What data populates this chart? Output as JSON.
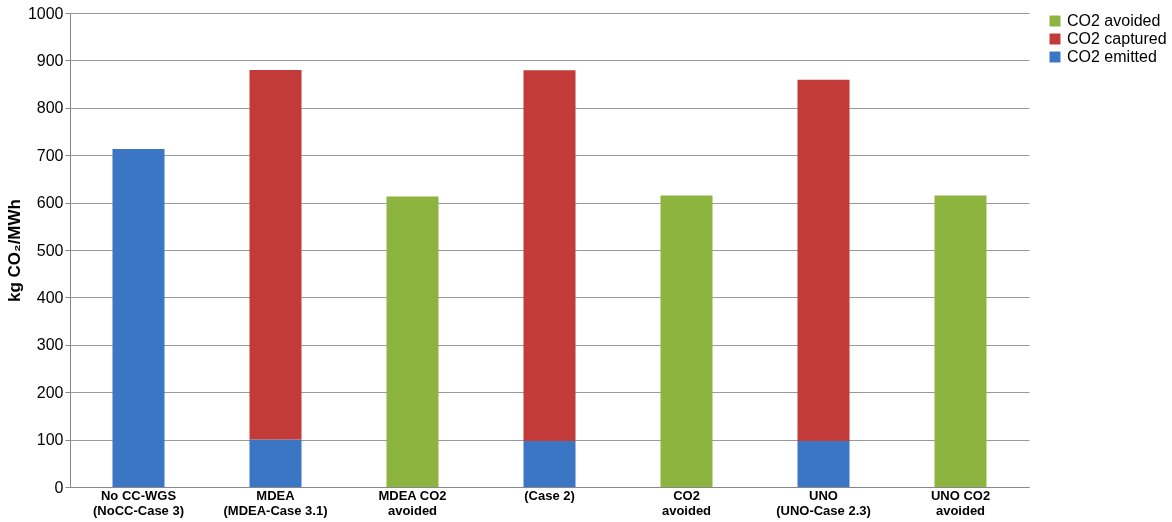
{
  "chart_data": {
    "type": "bar",
    "stacked": true,
    "ylabel": "kg CO₂/MWh",
    "categories": [
      "No CC-WGS\n(NoCC-Case 3)",
      "MDEA\n(MDEA-Case 3.1)",
      "MDEA  CO2\navoided",
      "(Case 2)",
      "CO2\navoided",
      "UNO\n(UNO-Case 2.3)",
      "UNO CO2\navoided"
    ],
    "series": [
      {
        "name": "CO2 emitted",
        "color": "#3a76c4",
        "values": [
          713,
          100,
          null,
          97,
          null,
          97,
          null
        ]
      },
      {
        "name": "CO2 captured",
        "color": "#c23b38",
        "values": [
          null,
          780,
          null,
          782,
          null,
          762,
          null
        ]
      },
      {
        "name": "CO2 avoided",
        "color": "#8db43e",
        "values": [
          null,
          null,
          613,
          null,
          615,
          null,
          615
        ]
      }
    ],
    "ylim": [
      0,
      1000
    ],
    "yticks": [
      0,
      100,
      200,
      300,
      400,
      500,
      600,
      700,
      800,
      900,
      1000
    ],
    "grid": "y",
    "legend": "right"
  }
}
